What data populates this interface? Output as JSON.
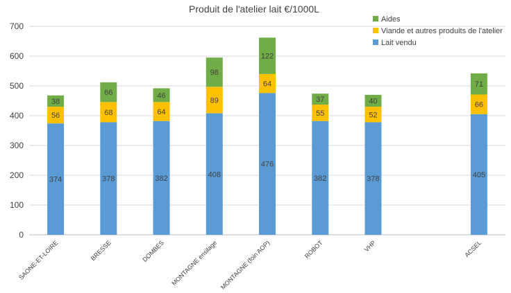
{
  "chart_data": {
    "type": "bar",
    "stacked": true,
    "title": "Produit de l'atelier lait €/1000L",
    "xlabel": "",
    "ylabel": "",
    "ylim": [
      0,
      700
    ],
    "yticks": [
      0,
      100,
      200,
      300,
      400,
      500,
      600,
      700
    ],
    "grid": true,
    "legend_position": "top-right",
    "categories": [
      "SAONE-ET-LOIRE",
      "BRESSE",
      "DOMBES",
      "MONTAGNE ensilage",
      "MONTAGNE (foin AOP)",
      "ROBOT",
      "VHP",
      "",
      "ACSEL"
    ],
    "series": [
      {
        "name": "Lait vendu",
        "color": "#5b9bd5",
        "values": [
          374,
          378,
          382,
          408,
          476,
          382,
          378,
          null,
          405
        ]
      },
      {
        "name": "Viande et autres produits de l'atelier",
        "color": "#ffc000",
        "values": [
          56,
          68,
          64,
          89,
          64,
          55,
          52,
          null,
          66
        ]
      },
      {
        "name": "Aides",
        "color": "#70ad47",
        "values": [
          38,
          66,
          46,
          98,
          122,
          37,
          40,
          null,
          71
        ]
      }
    ]
  }
}
